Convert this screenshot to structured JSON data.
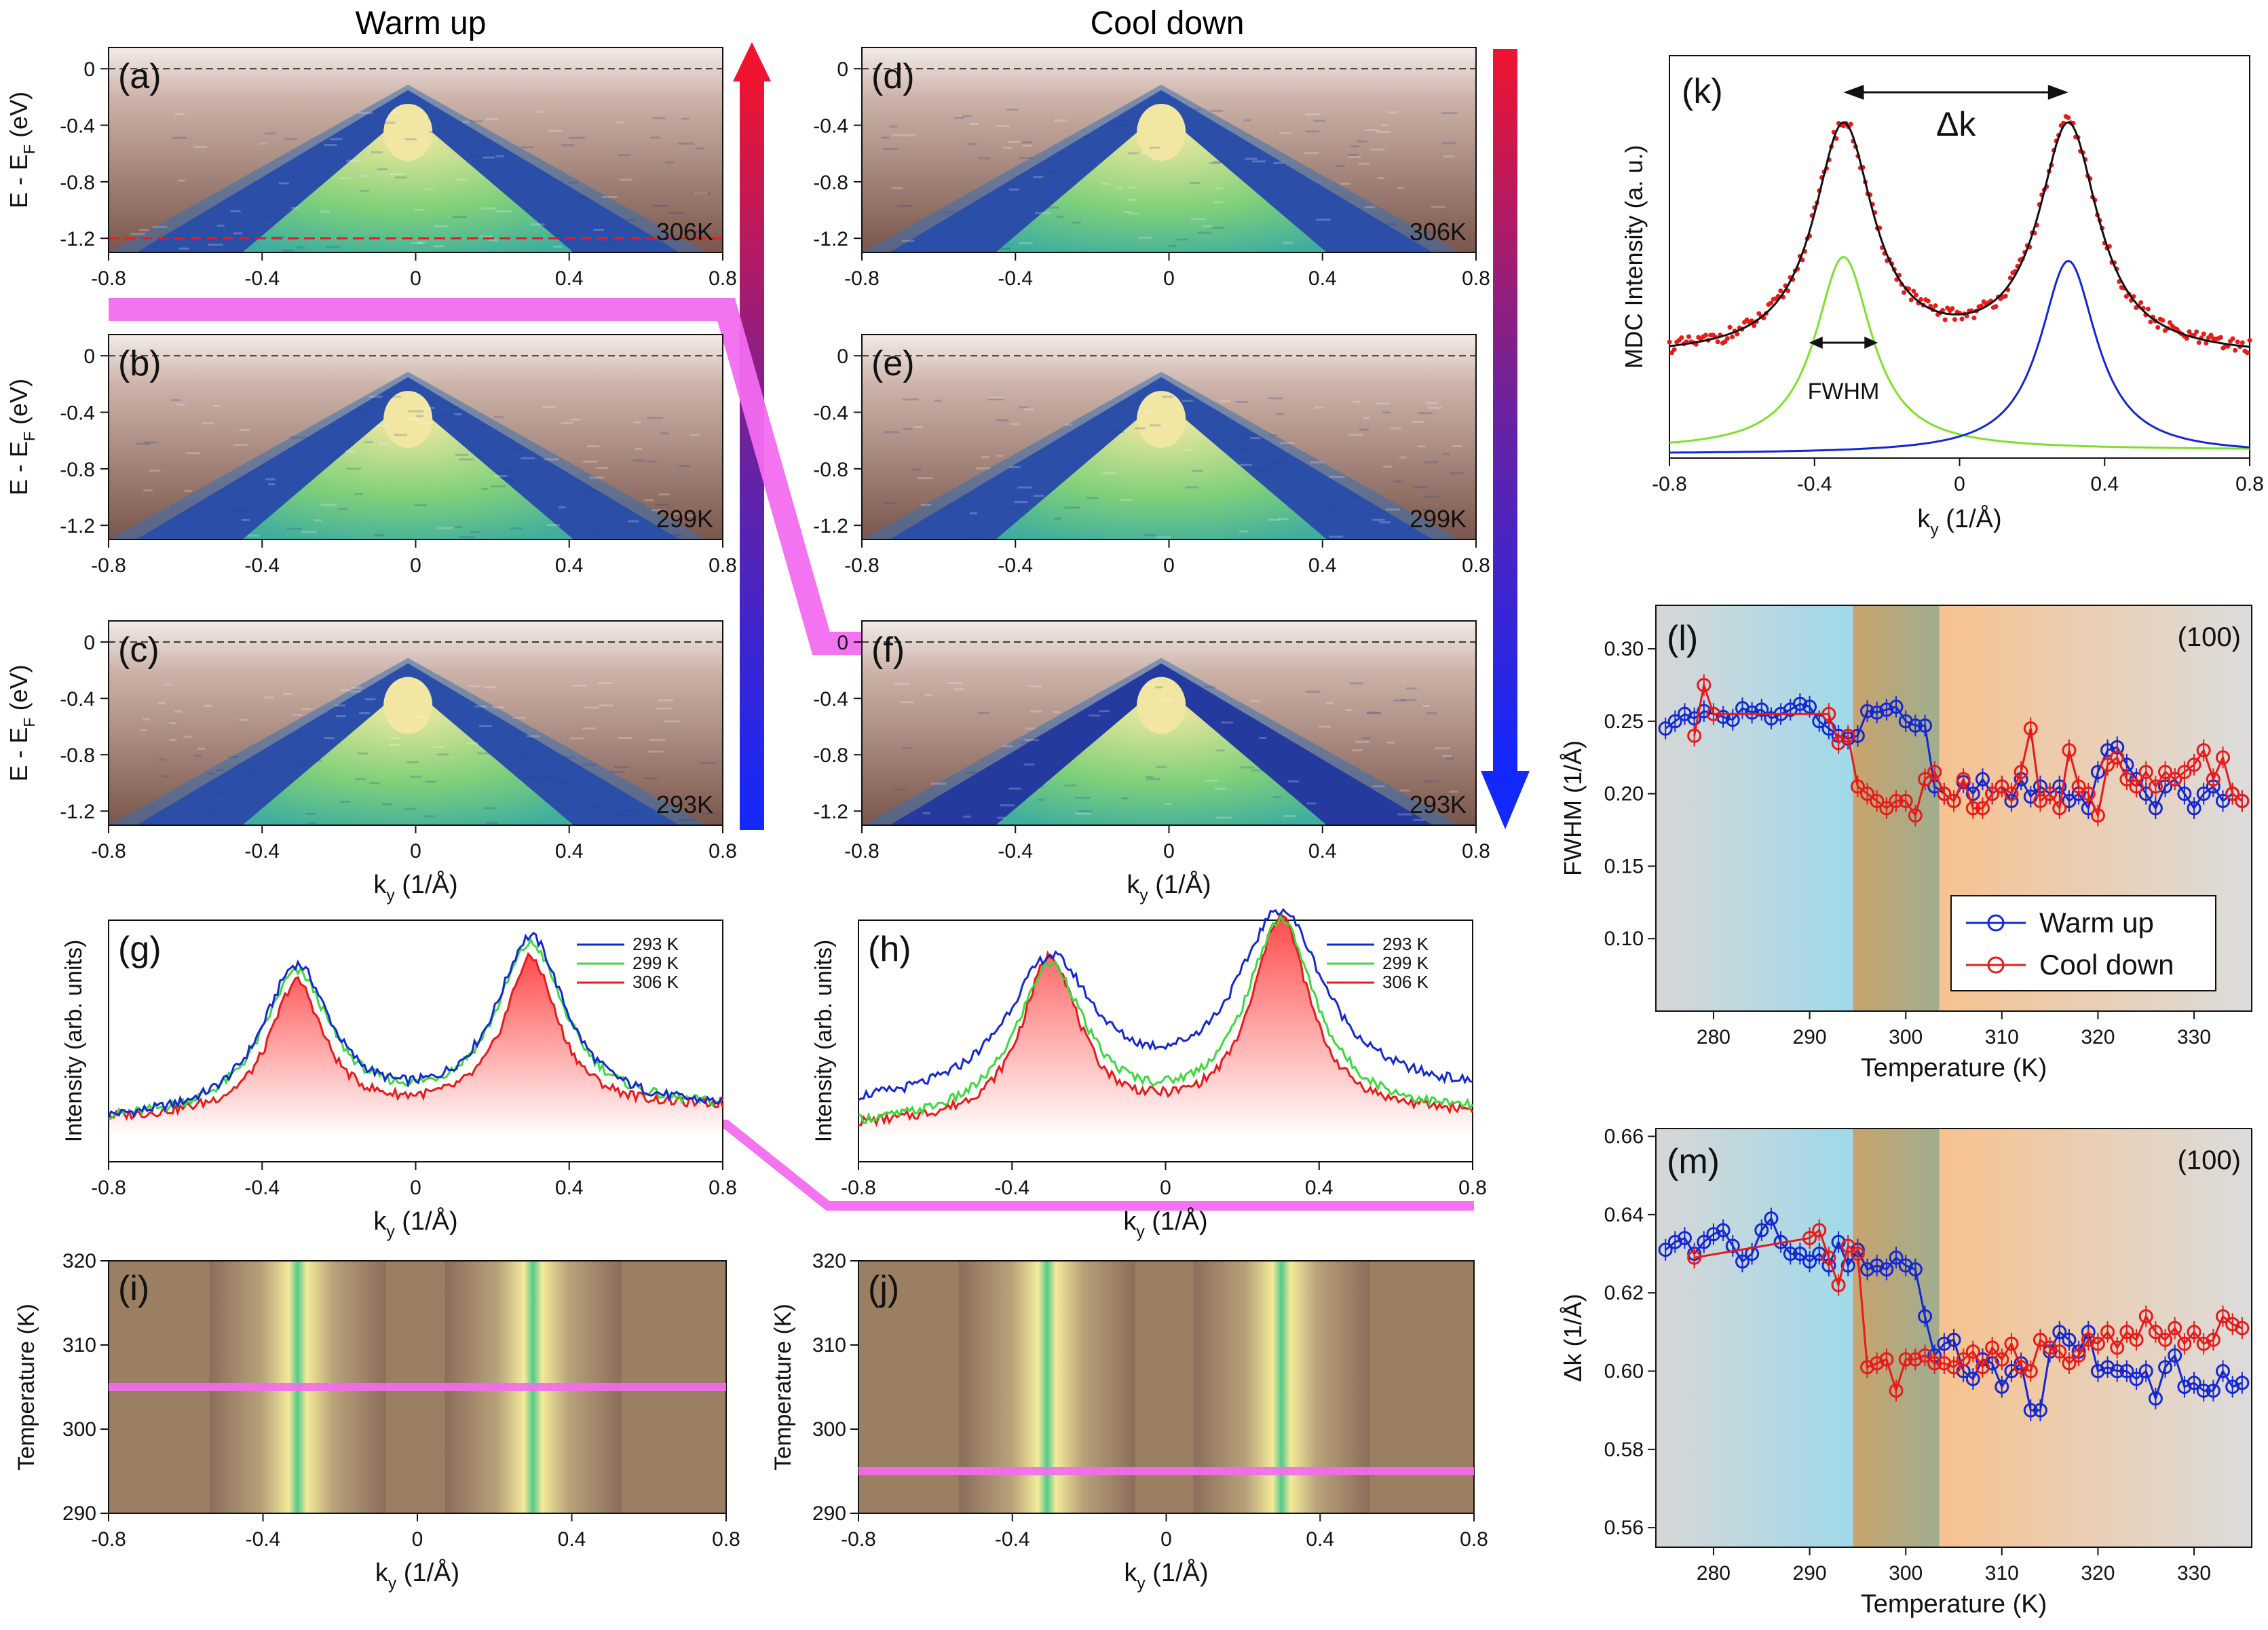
{
  "headers": {
    "warm": "Warm up",
    "cool": "Cool down"
  },
  "labels": {
    "energy_axis": "E - E",
    "energy_sub": "F",
    "energy_unit": " (eV)",
    "ky_axis": "k",
    "ky_sub": "y",
    "ky_unit": " (1/Å)",
    "intensity_axis": "Intensity (arb. units)",
    "mdc_axis": "MDC Intensity (a. u.)",
    "temperature_axis": "Temperature (K)",
    "fwhm_axis": "FWHM (1/Å)",
    "dk_axis": "Δk (1/Å)",
    "fwhm_marker": "FWHM",
    "dk_marker": "Δk"
  },
  "panels": {
    "a": {
      "label": "(a)",
      "temp": "306K"
    },
    "b": {
      "label": "(b)",
      "temp": "299K"
    },
    "c": {
      "label": "(c)",
      "temp": "293K"
    },
    "d": {
      "label": "(d)",
      "temp": "306K"
    },
    "e": {
      "label": "(e)",
      "temp": "299K"
    },
    "f": {
      "label": "(f)",
      "temp": "293K"
    },
    "g": {
      "label": "(g)"
    },
    "h": {
      "label": "(h)"
    },
    "i": {
      "label": "(i)"
    },
    "j": {
      "label": "(j)"
    },
    "k": {
      "label": "(k)"
    },
    "l": {
      "label": "(l)",
      "orientation": "(100)"
    },
    "m": {
      "label": "(m)",
      "orientation": "(100)"
    }
  },
  "colors": {
    "blue": "#1428d2",
    "red": "#e81a1a",
    "green": "#3cd93c",
    "magenta": "#f36cf0",
    "lime": "#7fe02b",
    "black": "#111111"
  },
  "chart_data": [
    {
      "id": "arpes-maps",
      "type": "heatmap",
      "x_label": "k_y (1/Å)",
      "y_label": "E - E_F (eV)",
      "xlim": [
        -0.8,
        0.8
      ],
      "ylim": [
        -1.3,
        0.15
      ],
      "x_ticks": [
        -0.8,
        -0.4,
        0,
        0.4,
        0.8
      ],
      "y_ticks": [
        0,
        -0.4,
        -0.8,
        -1.2
      ],
      "y_tick_labels": [
        "0",
        "-0.4",
        "-0.8",
        "-1.2"
      ],
      "x_tick_labels": [
        "-0.8",
        "-0.4",
        "0",
        "0.4",
        "0.8"
      ],
      "fermi_level": 0,
      "reference_line_energy": -1.2,
      "panels": [
        "306K warm",
        "299K warm",
        "293K warm",
        "306K cool",
        "299K cool",
        "293K cool"
      ]
    },
    {
      "id": "mdc-warm",
      "type": "line",
      "panel": "g",
      "xlim": [
        -0.8,
        0.8
      ],
      "x_ticks": [
        -0.8,
        -0.4,
        0,
        0.4,
        0.8
      ],
      "peak_positions": [
        -0.31,
        0.3
      ],
      "series": [
        {
          "name": "293 K",
          "peak_heights": [
            0.78,
            0.88
          ],
          "widths": [
            0.11,
            0.11
          ],
          "base": 0.16
        },
        {
          "name": "299 K",
          "peak_heights": [
            0.75,
            0.85
          ],
          "widths": [
            0.11,
            0.11
          ],
          "base": 0.16
        },
        {
          "name": "306 K",
          "peak_heights": [
            0.72,
            0.8
          ],
          "widths": [
            0.085,
            0.085
          ],
          "base": 0.17
        }
      ]
    },
    {
      "id": "mdc-cool",
      "type": "line",
      "panel": "h",
      "xlim": [
        -0.8,
        0.8
      ],
      "x_ticks": [
        -0.8,
        -0.4,
        0,
        0.4,
        0.8
      ],
      "peak_positions": [
        -0.3,
        0.3
      ],
      "series": [
        {
          "name": "293 K",
          "peak_heights": [
            0.8,
            0.98
          ],
          "widths": [
            0.14,
            0.14
          ],
          "base": 0.22
        },
        {
          "name": "299 K",
          "peak_heights": [
            0.78,
            0.95
          ],
          "widths": [
            0.11,
            0.11
          ],
          "base": 0.14
        },
        {
          "name": "306 K",
          "peak_heights": [
            0.82,
            0.97
          ],
          "widths": [
            0.09,
            0.09
          ],
          "base": 0.14
        }
      ]
    },
    {
      "id": "mdc-temperature-map-warm",
      "type": "heatmap",
      "panel": "i",
      "xlim": [
        -0.8,
        0.8
      ],
      "ylim": [
        290,
        320
      ],
      "x_ticks": [
        -0.8,
        -0.4,
        0,
        0.4,
        0.8
      ],
      "y_ticks": [
        290,
        300,
        310,
        320
      ],
      "transition_temperature": 305
    },
    {
      "id": "mdc-temperature-map-cool",
      "type": "heatmap",
      "panel": "j",
      "xlim": [
        -0.8,
        0.8
      ],
      "ylim": [
        290,
        320
      ],
      "x_ticks": [
        -0.8,
        -0.4,
        0,
        0.4,
        0.8
      ],
      "y_ticks": [
        290,
        300,
        310,
        320
      ],
      "transition_temperature": 295
    },
    {
      "id": "mdc-fit",
      "type": "line",
      "panel": "k",
      "xlim": [
        -0.8,
        0.8
      ],
      "x_ticks": [
        -0.8,
        -0.4,
        0,
        0.4,
        0.8
      ],
      "peak_positions": [
        -0.32,
        0.3
      ],
      "peak_width_hwhm": 0.095,
      "series": [
        {
          "name": "data",
          "style": "red dots"
        },
        {
          "name": "total fit",
          "style": "black line"
        },
        {
          "name": "left Lorentzian",
          "style": "green line"
        },
        {
          "name": "right Lorentzian",
          "style": "blue line"
        }
      ]
    },
    {
      "id": "fwhm-vs-temperature",
      "type": "scatter",
      "panel": "l",
      "xlim": [
        274,
        336
      ],
      "ylim": [
        0.05,
        0.33
      ],
      "x_ticks": [
        280,
        290,
        300,
        310,
        320,
        330
      ],
      "y_ticks": [
        0.1,
        0.15,
        0.2,
        0.25,
        0.3
      ],
      "y_tick_labels": [
        "0.10",
        "0.15",
        "0.20",
        "0.25",
        "0.30"
      ],
      "regions": [
        {
          "from": 274,
          "to": 294.5,
          "name": "low-T"
        },
        {
          "from": 294.5,
          "to": 303.5,
          "name": "hysteresis"
        },
        {
          "from": 303.5,
          "to": 336,
          "name": "high-T"
        }
      ],
      "legend": [
        "Warm up",
        "Cool down"
      ],
      "series": [
        {
          "name": "Warm up",
          "x": [
            275,
            276,
            277,
            278,
            279,
            280,
            281,
            282,
            283,
            284,
            285,
            286,
            287,
            288,
            289,
            290,
            291,
            292,
            293,
            294,
            295,
            296,
            297,
            298,
            299,
            300,
            301,
            302,
            303,
            304,
            305,
            306,
            307,
            308,
            309,
            310,
            311,
            312,
            313,
            314,
            315,
            316,
            317,
            318,
            319,
            320,
            321,
            322,
            323,
            324,
            325,
            326,
            327,
            328,
            329,
            330,
            331,
            332,
            333,
            334,
            335
          ],
          "y": [
            0.245,
            0.25,
            0.255,
            0.252,
            0.257,
            0.255,
            0.253,
            0.251,
            0.259,
            0.256,
            0.258,
            0.252,
            0.255,
            0.258,
            0.262,
            0.26,
            0.25,
            0.245,
            0.24,
            0.238,
            0.24,
            0.257,
            0.256,
            0.258,
            0.26,
            0.25,
            0.247,
            0.247,
            0.205,
            0.2,
            0.195,
            0.208,
            0.2,
            0.21,
            0.2,
            0.205,
            0.195,
            0.21,
            0.198,
            0.205,
            0.2,
            0.205,
            0.195,
            0.2,
            0.19,
            0.215,
            0.23,
            0.232,
            0.22,
            0.21,
            0.2,
            0.19,
            0.205,
            0.21,
            0.2,
            0.19,
            0.2,
            0.205,
            0.195,
            0.2,
            0.195
          ]
        },
        {
          "name": "Cool down",
          "x": [
            278,
            279,
            280,
            292,
            293,
            294,
            295,
            296,
            297,
            298,
            299,
            300,
            301,
            302,
            303,
            304,
            305,
            306,
            307,
            308,
            309,
            310,
            311,
            312,
            313,
            314,
            315,
            316,
            317,
            318,
            319,
            320,
            321,
            322,
            323,
            324,
            325,
            326,
            327,
            328,
            329,
            330,
            331,
            332,
            333,
            334,
            335
          ],
          "y": [
            0.24,
            0.275,
            0.255,
            0.255,
            0.235,
            0.24,
            0.205,
            0.2,
            0.195,
            0.19,
            0.195,
            0.195,
            0.185,
            0.21,
            0.215,
            0.2,
            0.195,
            0.21,
            0.19,
            0.19,
            0.2,
            0.205,
            0.2,
            0.215,
            0.245,
            0.195,
            0.2,
            0.19,
            0.23,
            0.205,
            0.2,
            0.185,
            0.22,
            0.225,
            0.21,
            0.205,
            0.215,
            0.205,
            0.215,
            0.21,
            0.215,
            0.22,
            0.23,
            0.21,
            0.225,
            0.2,
            0.195
          ]
        }
      ]
    },
    {
      "id": "dk-vs-temperature",
      "type": "scatter",
      "panel": "m",
      "xlim": [
        274,
        336
      ],
      "ylim": [
        0.555,
        0.662
      ],
      "x_ticks": [
        280,
        290,
        300,
        310,
        320,
        330
      ],
      "y_ticks": [
        0.56,
        0.58,
        0.6,
        0.62,
        0.64,
        0.66
      ],
      "y_tick_labels": [
        "0.56",
        "0.58",
        "0.60",
        "0.62",
        "0.64",
        "0.66"
      ],
      "regions": [
        {
          "from": 274,
          "to": 294.5,
          "name": "low-T"
        },
        {
          "from": 294.5,
          "to": 303.5,
          "name": "hysteresis"
        },
        {
          "from": 303.5,
          "to": 336,
          "name": "high-T"
        }
      ],
      "series": [
        {
          "name": "Warm up",
          "x": [
            275,
            276,
            277,
            278,
            279,
            280,
            281,
            282,
            283,
            284,
            285,
            286,
            287,
            288,
            289,
            290,
            291,
            292,
            293,
            294,
            295,
            296,
            297,
            298,
            299,
            300,
            301,
            302,
            303,
            304,
            305,
            306,
            307,
            308,
            309,
            310,
            311,
            312,
            313,
            314,
            315,
            316,
            317,
            318,
            319,
            320,
            321,
            322,
            323,
            324,
            325,
            326,
            327,
            328,
            329,
            330,
            331,
            332,
            333,
            334,
            335
          ],
          "y": [
            0.631,
            0.633,
            0.634,
            0.63,
            0.633,
            0.635,
            0.636,
            0.632,
            0.628,
            0.63,
            0.636,
            0.639,
            0.633,
            0.63,
            0.63,
            0.628,
            0.63,
            0.627,
            0.633,
            0.627,
            0.631,
            0.626,
            0.627,
            0.626,
            0.629,
            0.627,
            0.626,
            0.614,
            0.604,
            0.607,
            0.608,
            0.6,
            0.598,
            0.603,
            0.602,
            0.596,
            0.6,
            0.602,
            0.59,
            0.59,
            0.605,
            0.61,
            0.608,
            0.605,
            0.61,
            0.6,
            0.601,
            0.6,
            0.6,
            0.598,
            0.6,
            0.593,
            0.601,
            0.604,
            0.596,
            0.597,
            0.595,
            0.595,
            0.6,
            0.596,
            0.597
          ]
        },
        {
          "name": "Cool down",
          "x": [
            278,
            290,
            291,
            292,
            293,
            294,
            295,
            296,
            297,
            298,
            299,
            300,
            301,
            302,
            303,
            304,
            305,
            306,
            307,
            308,
            309,
            310,
            311,
            312,
            313,
            314,
            315,
            316,
            317,
            318,
            319,
            320,
            321,
            322,
            323,
            324,
            325,
            326,
            327,
            328,
            329,
            330,
            331,
            332,
            333,
            334,
            335
          ],
          "y": [
            0.629,
            0.634,
            0.636,
            0.629,
            0.622,
            0.632,
            0.63,
            0.601,
            0.602,
            0.603,
            0.595,
            0.603,
            0.603,
            0.604,
            0.602,
            0.602,
            0.601,
            0.603,
            0.605,
            0.601,
            0.606,
            0.603,
            0.607,
            0.601,
            0.6,
            0.608,
            0.606,
            0.605,
            0.602,
            0.604,
            0.608,
            0.607,
            0.61,
            0.606,
            0.61,
            0.608,
            0.614,
            0.61,
            0.608,
            0.611,
            0.607,
            0.61,
            0.607,
            0.608,
            0.614,
            0.612,
            0.611
          ]
        }
      ]
    }
  ]
}
